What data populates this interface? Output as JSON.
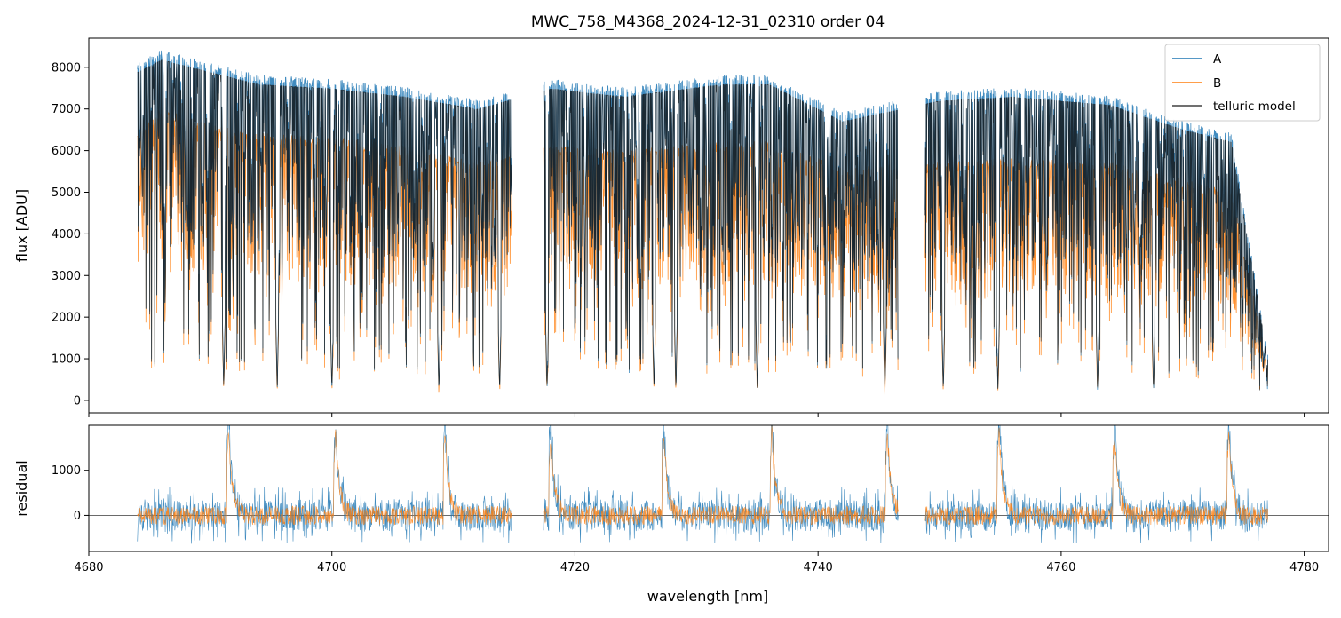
{
  "chart_data": [
    {
      "type": "line",
      "panel": "top",
      "title": "MWC_758_M4368_2024-12-31_02310  order 04",
      "xlabel": "",
      "ylabel": "flux [ADU]",
      "xlim": [
        4680,
        4782
      ],
      "ylim": [
        -300,
        8700
      ],
      "x_ticks": [
        4680,
        4700,
        4720,
        4740,
        4760,
        4780
      ],
      "y_ticks": [
        0,
        1000,
        2000,
        3000,
        4000,
        5000,
        6000,
        7000,
        8000
      ],
      "y_tick_labels": [
        "0",
        "1000",
        "2000",
        "3000",
        "4000",
        "5000",
        "6000",
        "7000",
        "8000"
      ],
      "grid": false,
      "legend": "top-right",
      "x_range": [
        4684,
        4777
      ],
      "gaps": [
        [
          4714.8,
          4717.4
        ],
        [
          4746.6,
          4748.8
        ]
      ],
      "series": [
        {
          "name": "A",
          "color": "#1f77b4",
          "continuum": [
            [
              4684,
              8000
            ],
            [
              4686,
              8300
            ],
            [
              4690,
              8000
            ],
            [
              4694,
              7700
            ],
            [
              4700,
              7600
            ],
            [
              4706,
              7400
            ],
            [
              4712,
              7100
            ],
            [
              4718,
              7600
            ],
            [
              4724,
              7400
            ],
            [
              4732,
              7700
            ],
            [
              4736,
              7700
            ],
            [
              4742,
              6800
            ],
            [
              4750,
              7300
            ],
            [
              4756,
              7400
            ],
            [
              4764,
              7200
            ],
            [
              4770,
              6600
            ],
            [
              4774,
              6300
            ],
            [
              4777,
              1000
            ]
          ]
        },
        {
          "name": "B",
          "color": "#ff7f0e",
          "continuum": [
            [
              4684,
              6300
            ],
            [
              4686,
              6900
            ],
            [
              4690,
              6500
            ],
            [
              4694,
              6300
            ],
            [
              4700,
              6200
            ],
            [
              4706,
              6000
            ],
            [
              4712,
              5600
            ],
            [
              4718,
              6000
            ],
            [
              4724,
              5900
            ],
            [
              4732,
              6100
            ],
            [
              4736,
              6100
            ],
            [
              4742,
              5500
            ],
            [
              4750,
              5600
            ],
            [
              4756,
              5700
            ],
            [
              4764,
              5600
            ],
            [
              4770,
              5200
            ],
            [
              4774,
              4900
            ],
            [
              4777,
              800
            ]
          ]
        },
        {
          "name": "telluric model",
          "color": "#404040"
        }
      ],
      "deep_lines": [
        4691.1,
        4695.5,
        4700.0,
        4708.8,
        4713.8,
        4717.7,
        4726.5,
        4728.3,
        4735.0,
        4745.5,
        4750.3,
        4754.8,
        4763.0,
        4767.6
      ]
    },
    {
      "type": "line",
      "panel": "bottom",
      "xlabel": "wavelength [nm]",
      "ylabel": "residual",
      "xlim": [
        4680,
        4782
      ],
      "ylim": [
        -800,
        2000
      ],
      "x_ticks": [
        4680,
        4700,
        4720,
        4740,
        4760,
        4780
      ],
      "x_tick_labels": [
        "4680",
        "4700",
        "4720",
        "4740",
        "4760",
        "4780"
      ],
      "y_ticks": [
        0,
        1000
      ],
      "y_tick_labels": [
        "0",
        "1000"
      ],
      "zero_line": 0,
      "spikes": [
        4691.5,
        4700.3,
        4709.3,
        4718.0,
        4727.3,
        4736.2,
        4745.7,
        4754.9,
        4764.4,
        4773.8
      ],
      "series": [
        {
          "name": "A",
          "color": "#1f77b4"
        },
        {
          "name": "B",
          "color": "#ff7f0e"
        }
      ]
    }
  ]
}
